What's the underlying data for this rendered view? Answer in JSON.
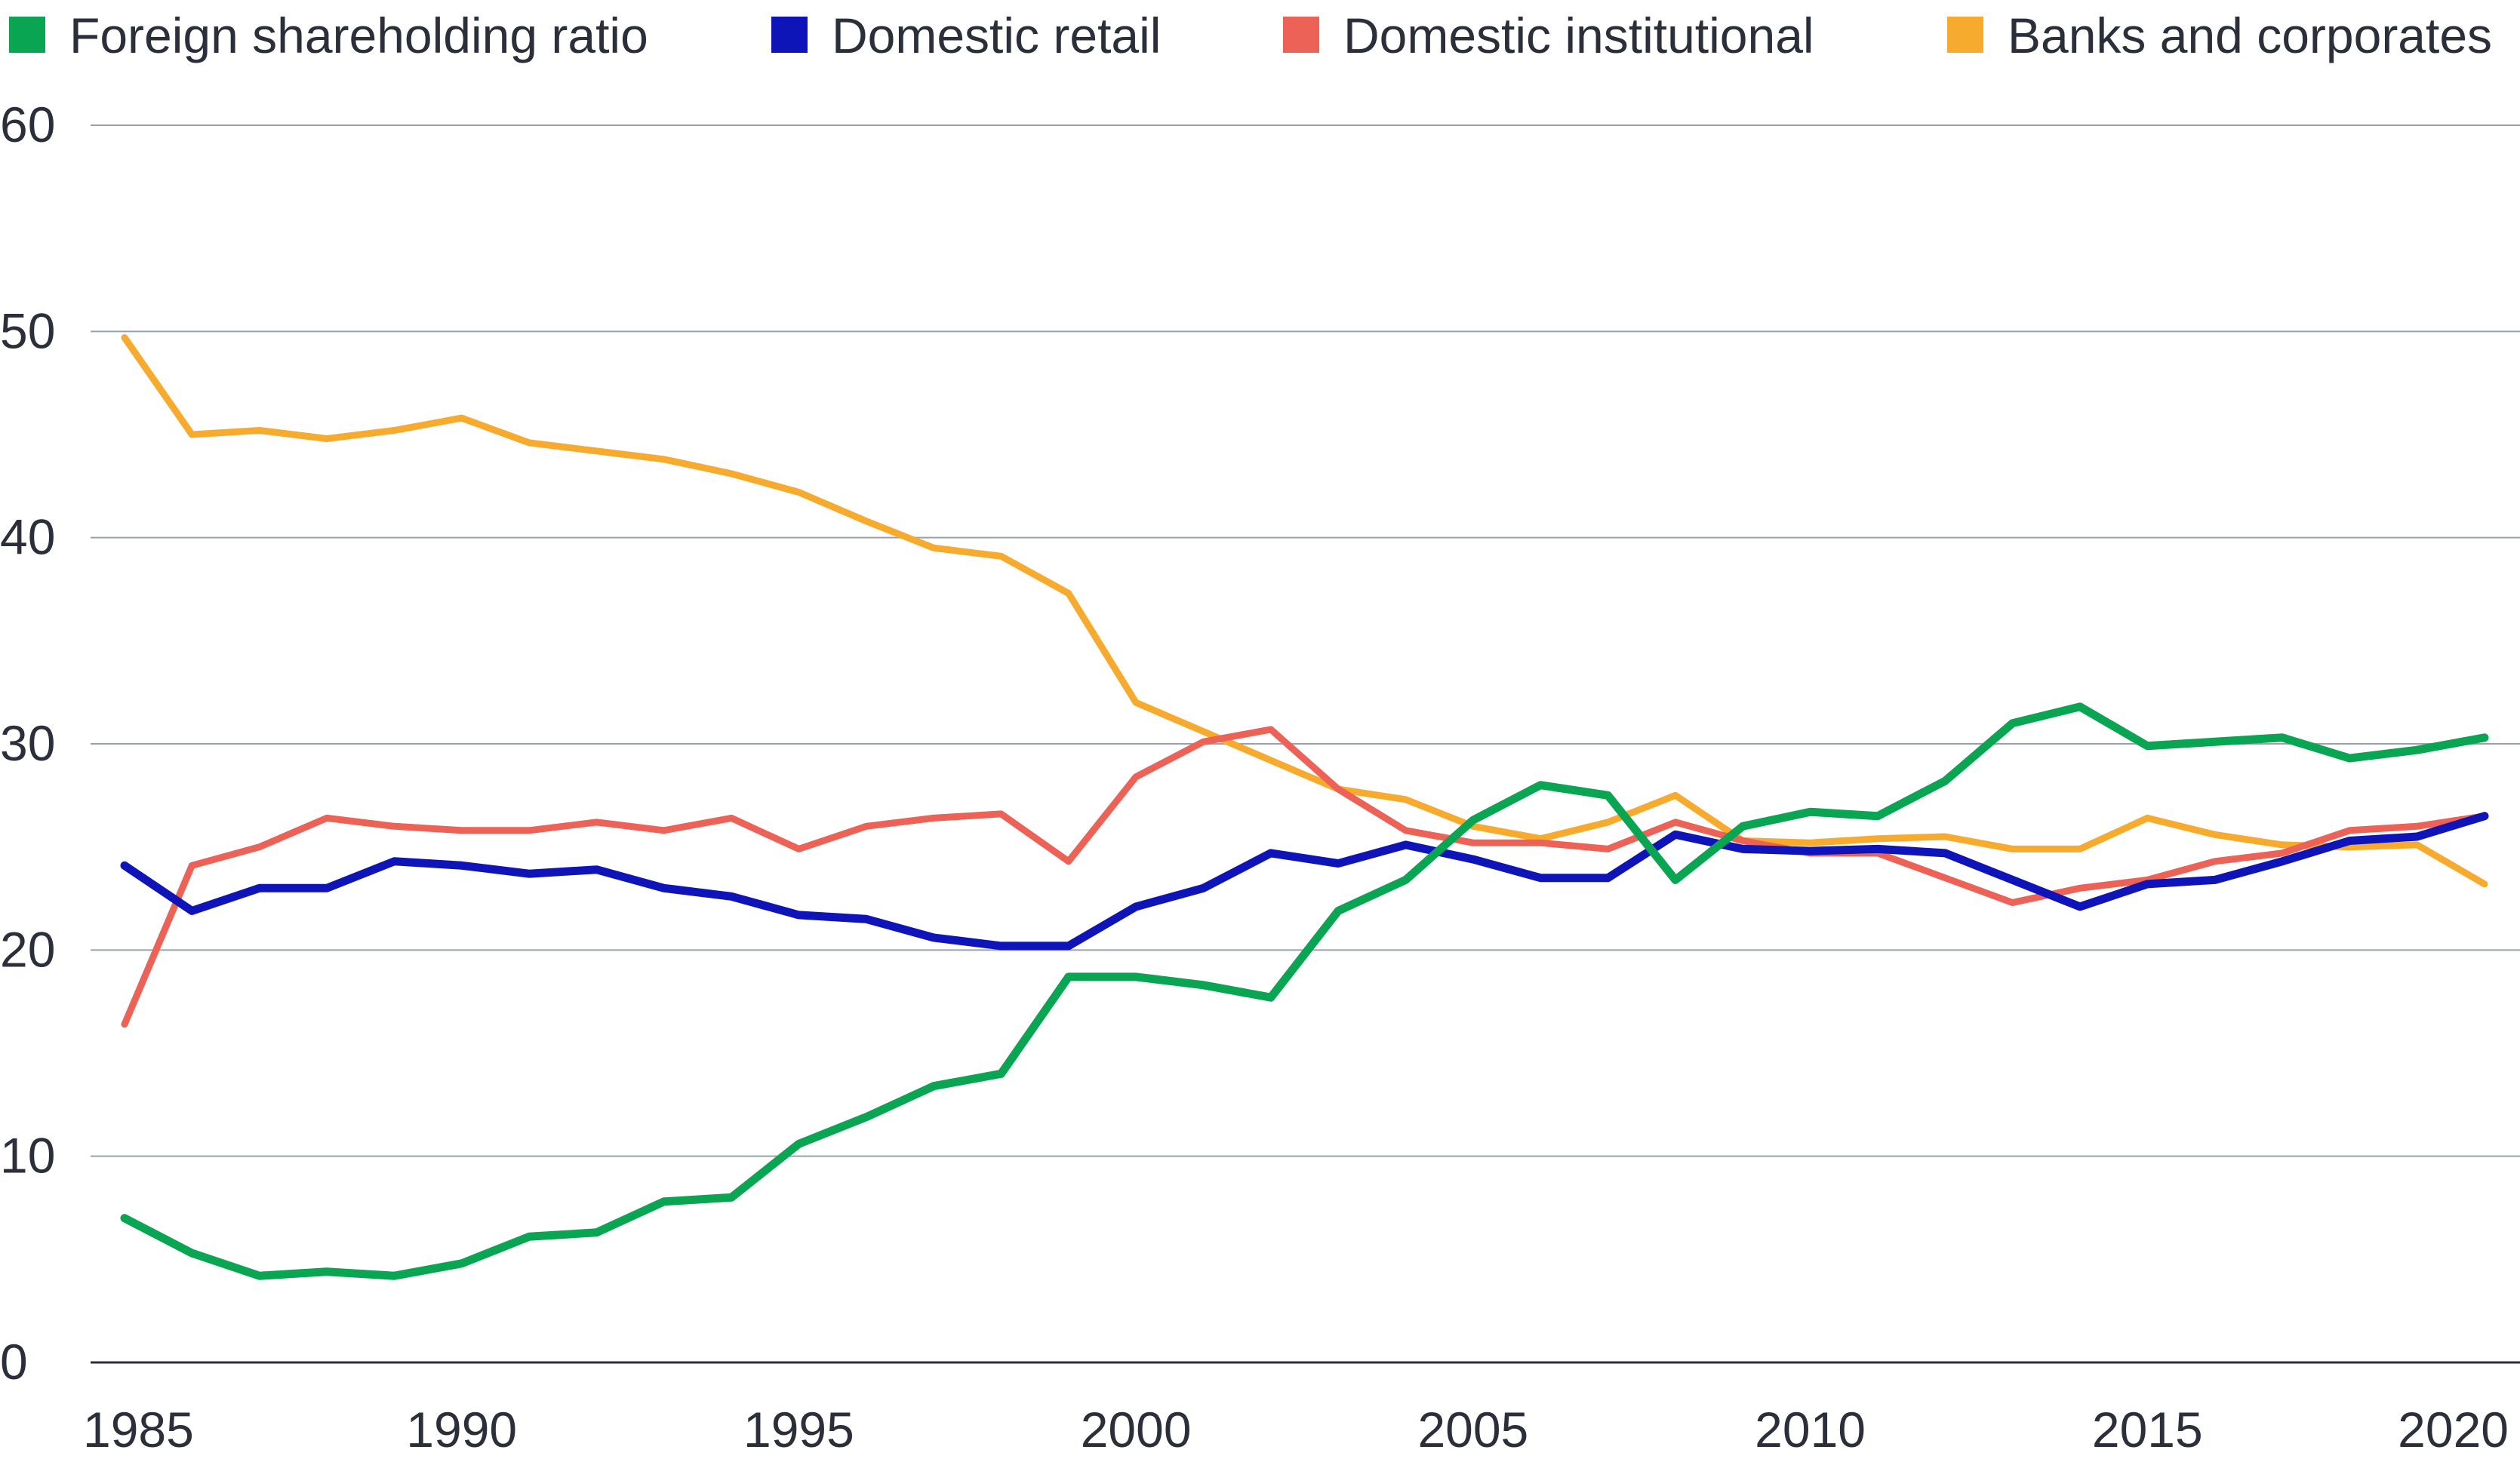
{
  "chart_data": {
    "type": "line",
    "title": "",
    "xlabel": "",
    "ylabel": "",
    "xlim": [
      1985,
      2020
    ],
    "ylim": [
      0,
      60
    ],
    "yticks": [
      0,
      10,
      20,
      30,
      40,
      50,
      60
    ],
    "xticks": [
      1985,
      1990,
      1995,
      2000,
      2005,
      2010,
      2015,
      2020
    ],
    "grid": true,
    "legend_position": "top",
    "x": [
      1985,
      1986,
      1987,
      1988,
      1989,
      1990,
      1991,
      1992,
      1993,
      1994,
      1995,
      1996,
      1997,
      1998,
      1999,
      2000,
      2001,
      2002,
      2003,
      2004,
      2005,
      2006,
      2007,
      2008,
      2009,
      2010,
      2011,
      2012,
      2013,
      2014,
      2015,
      2016,
      2017,
      2018,
      2019,
      2020
    ],
    "series": [
      {
        "name": "Foreign shareholding ratio",
        "color": "#0aa552",
        "width": 11,
        "values": [
          7.0,
          5.3,
          4.2,
          4.4,
          4.2,
          4.8,
          6.1,
          6.3,
          7.8,
          8.0,
          10.6,
          11.9,
          13.4,
          14.0,
          18.7,
          18.7,
          18.3,
          17.7,
          21.9,
          23.4,
          26.3,
          28.0,
          27.5,
          23.4,
          26.0,
          26.7,
          26.5,
          28.2,
          31.0,
          31.8,
          29.9,
          30.1,
          30.3,
          29.3,
          29.7,
          30.3
        ]
      },
      {
        "name": "Domestic retail",
        "color": "#0f14b9",
        "width": 11,
        "values": [
          24.1,
          21.9,
          23.0,
          23.0,
          24.3,
          24.1,
          23.7,
          23.9,
          23.0,
          22.6,
          21.7,
          21.5,
          20.6,
          20.2,
          20.2,
          22.1,
          23.0,
          24.7,
          24.2,
          25.1,
          24.4,
          23.5,
          23.5,
          25.6,
          24.9,
          24.8,
          24.9,
          24.7,
          23.4,
          22.1,
          23.2,
          23.4,
          24.3,
          25.3,
          25.5,
          26.5
        ]
      },
      {
        "name": "Domestic institutional",
        "color": "#ec6256",
        "width": 9,
        "values": [
          16.4,
          24.1,
          25.0,
          26.4,
          26.0,
          25.8,
          25.8,
          26.2,
          25.8,
          26.4,
          24.9,
          26.0,
          26.4,
          26.6,
          24.3,
          28.4,
          30.1,
          30.7,
          27.8,
          25.8,
          25.2,
          25.2,
          24.9,
          26.2,
          25.3,
          24.7,
          24.7,
          23.5,
          22.3,
          23.0,
          23.4,
          24.3,
          24.7,
          25.8,
          26.0,
          26.5
        ]
      },
      {
        "name": "Banks and corporates",
        "color": "#f6ab2f",
        "width": 9,
        "values": [
          49.7,
          45.0,
          45.2,
          44.8,
          45.2,
          45.8,
          44.6,
          44.2,
          43.8,
          43.1,
          42.2,
          40.8,
          39.5,
          39.1,
          37.3,
          32.0,
          30.6,
          29.2,
          27.8,
          27.3,
          26.0,
          25.4,
          26.2,
          27.5,
          25.3,
          25.2,
          25.4,
          25.5,
          24.9,
          24.9,
          26.4,
          25.6,
          25.1,
          25.0,
          25.1,
          23.2
        ]
      }
    ]
  }
}
